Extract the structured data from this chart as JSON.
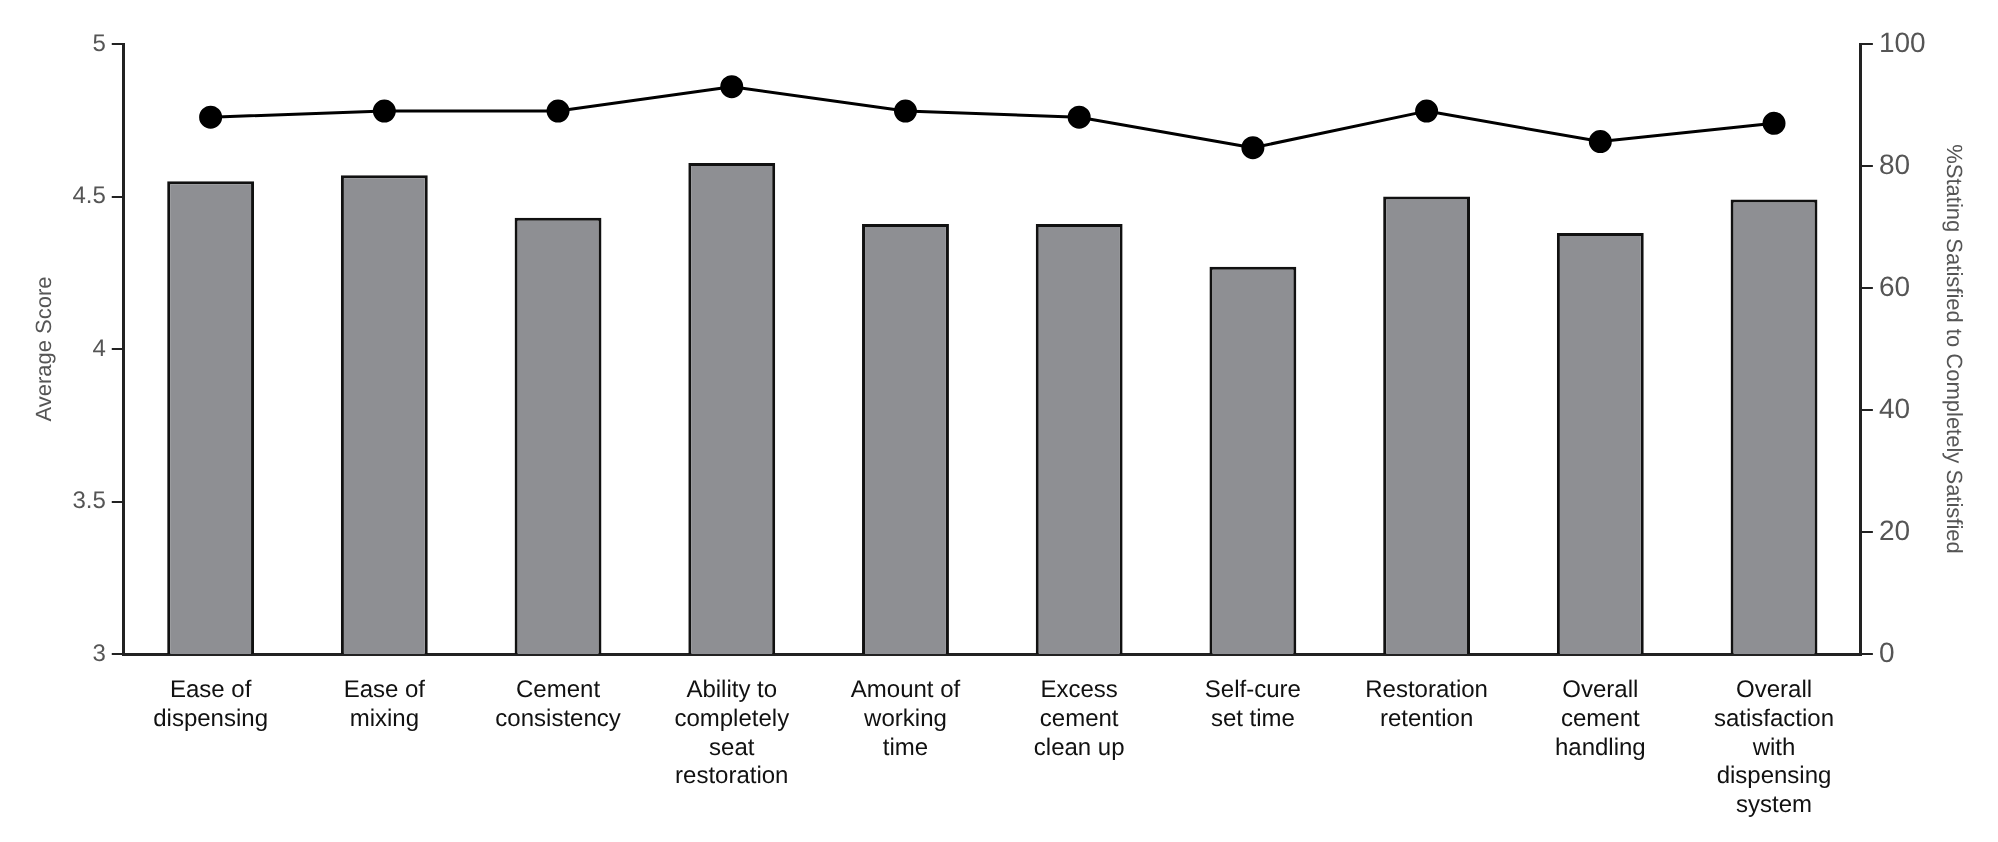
{
  "chart_data": {
    "type": "bar",
    "ylabel": "Average Score",
    "y2label": "%Stating Satisfied to Completely Satisfied",
    "categories": [
      "Ease of dispensing",
      "Ease of mixing",
      "Cement consistency",
      "Ability to completely seat restoration",
      "Amount of working time",
      "Excess cement clean up",
      "Self-cure set time",
      "Restoration retention",
      "Overall cement handling",
      "Overall satisfaction with dispensing system"
    ],
    "series": [
      {
        "color": "#8e8f93",
        "values": [
          4.55,
          4.57,
          4.43,
          4.61,
          4.41,
          4.41,
          4.27,
          4.5,
          4.38,
          4.49
        ]
      },
      {
        "type": "line",
        "axis": "y2",
        "color": "#000000",
        "values": [
          88,
          89,
          89,
          93,
          89,
          88,
          83,
          89,
          84,
          87
        ]
      }
    ],
    "ylim": [
      3,
      5
    ],
    "yticks": [
      3,
      3.5,
      4,
      4.5,
      5
    ],
    "y2lim": [
      0,
      100
    ],
    "y2ticks": [
      0,
      20,
      40,
      60,
      80,
      100
    ],
    "grid": false,
    "legend": false,
    "marker": "circle",
    "line_style": "solid"
  }
}
